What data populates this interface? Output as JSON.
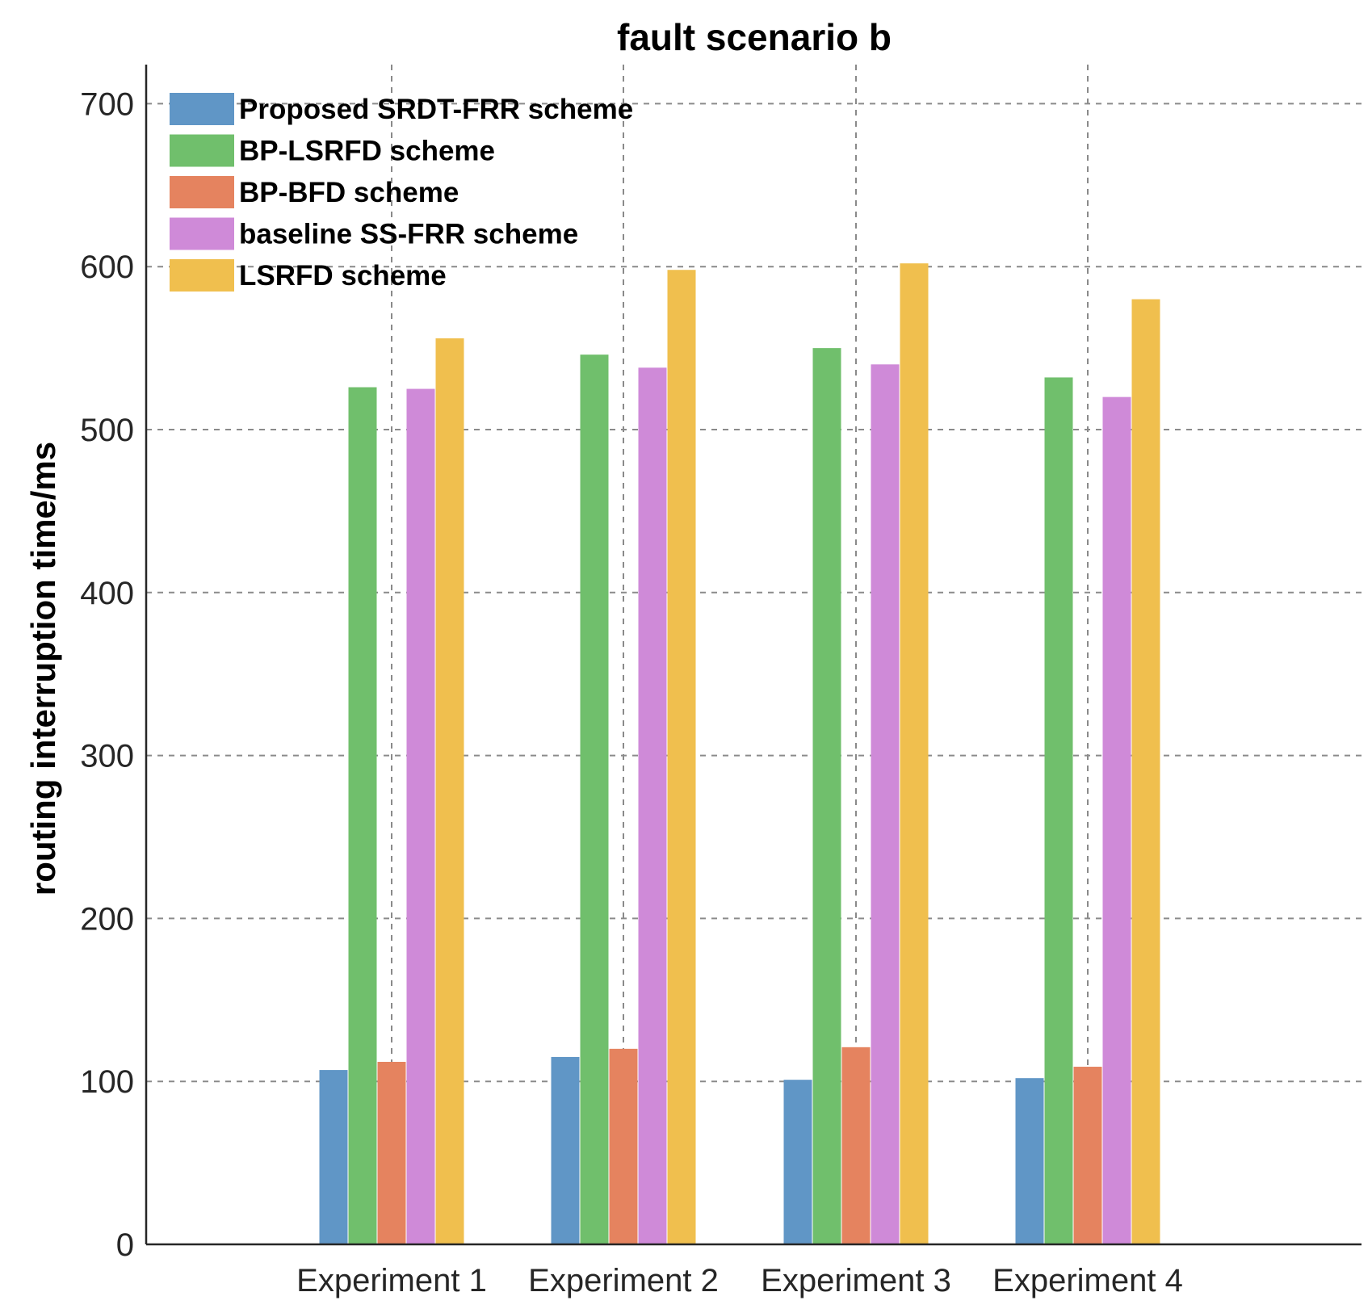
{
  "chart_data": {
    "type": "bar",
    "title": "fault scenario b",
    "xlabel": "",
    "ylabel": "routing interruption time/ms",
    "categories": [
      "Experiment 1",
      "Experiment 2",
      "Experiment 3",
      "Experiment 4"
    ],
    "series": [
      {
        "name": "Proposed SRDT-FRR scheme",
        "color": "#6096c6",
        "values": [
          107,
          115,
          101,
          102
        ]
      },
      {
        "name": "BP-LSRFD scheme",
        "color": "#70bf6c",
        "values": [
          526,
          546,
          550,
          532
        ]
      },
      {
        "name": "BP-BFD scheme",
        "color": "#e5835f",
        "values": [
          112,
          120,
          121,
          109
        ]
      },
      {
        "name": "baseline SS-FRR scheme",
        "color": "#cf8ad8",
        "values": [
          525,
          538,
          540,
          520
        ]
      },
      {
        "name": "LSRFD scheme",
        "color": "#f0bf4e",
        "values": [
          556,
          598,
          602,
          580
        ]
      }
    ],
    "ylim": [
      0,
      725
    ],
    "yticks": [
      0,
      100,
      200,
      300,
      400,
      500,
      600,
      700
    ],
    "grid": true,
    "legend": "top-left"
  }
}
